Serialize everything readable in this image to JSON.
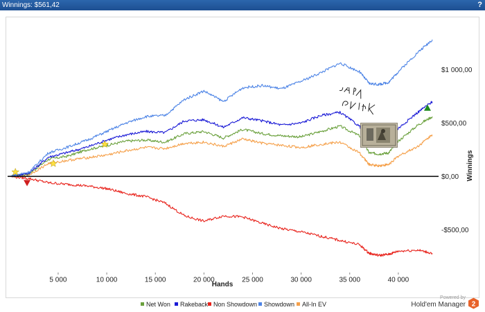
{
  "window": {
    "title": "Winnings: $561,42",
    "help_label": "?"
  },
  "chart_data": {
    "type": "line",
    "x": [
      0,
      2000,
      4000,
      6000,
      8000,
      10000,
      12000,
      14000,
      16000,
      18000,
      20000,
      22000,
      24000,
      26000,
      28000,
      30000,
      32000,
      34000,
      36000,
      37000,
      38000,
      39000,
      40000,
      42000,
      43500
    ],
    "series": [
      {
        "name": "Net Won",
        "color": "#6aa03c",
        "values": [
          0,
          25,
          160,
          190,
          250,
          290,
          330,
          340,
          320,
          400,
          420,
          360,
          440,
          400,
          380,
          370,
          420,
          470,
          380,
          220,
          210,
          220,
          330,
          480,
          560
        ]
      },
      {
        "name": "Rakeback",
        "color": "#1a1ad6",
        "values": [
          0,
          30,
          180,
          225,
          275,
          340,
          390,
          420,
          410,
          520,
          530,
          460,
          550,
          520,
          480,
          500,
          570,
          600,
          470,
          350,
          340,
          350,
          450,
          600,
          700
        ]
      },
      {
        "name": "Non Showdown",
        "color": "#e8231c",
        "values": [
          0,
          -20,
          -60,
          -75,
          -90,
          -115,
          -160,
          -190,
          -250,
          -370,
          -420,
          -370,
          -380,
          -440,
          -490,
          -520,
          -560,
          -600,
          -640,
          -720,
          -740,
          -730,
          -700,
          -690,
          -720
        ]
      },
      {
        "name": "Showdown",
        "color": "#4d84e6",
        "values": [
          0,
          40,
          220,
          275,
          340,
          420,
          500,
          560,
          570,
          720,
          800,
          700,
          830,
          850,
          820,
          890,
          970,
          1060,
          980,
          870,
          860,
          880,
          980,
          1160,
          1280
        ]
      },
      {
        "name": "All-In EV",
        "color": "#f5a04a",
        "values": [
          0,
          15,
          120,
          150,
          175,
          200,
          240,
          270,
          260,
          310,
          320,
          280,
          350,
          310,
          290,
          270,
          300,
          320,
          220,
          110,
          100,
          110,
          190,
          280,
          390
        ]
      }
    ],
    "markers": [
      {
        "kind": "star",
        "x": 600,
        "value": 40,
        "color": "#ffe040"
      },
      {
        "kind": "star",
        "x": 9800,
        "value": 300,
        "color": "#ffe040"
      },
      {
        "kind": "star",
        "x": 4500,
        "value": 120,
        "color": "#ffe040"
      },
      {
        "kind": "down-triangle",
        "x": 1800,
        "value": -60,
        "color": "#d01e1e"
      },
      {
        "kind": "up-triangle",
        "x": 43000,
        "value": 640,
        "color": "#1e8a1e"
      }
    ],
    "xlim": [
      -200,
      44000
    ],
    "ylim": [
      -900,
      1450
    ],
    "x_ticks": [
      5000,
      10000,
      15000,
      20000,
      25000,
      30000,
      35000,
      40000
    ],
    "x_tick_labels": [
      "5 000",
      "10 000",
      "15 000",
      "20 000",
      "25 000",
      "30 000",
      "35 000",
      "40 000"
    ],
    "y_ticks": [
      1000,
      500,
      0,
      -500
    ],
    "y_tick_labels": [
      "$1 000,00",
      "$500,00",
      "$0,00",
      "-$500,00"
    ],
    "xlabel": "Hands",
    "ylabel": "Winnings",
    "grid": false,
    "legend_position": "bottom"
  },
  "overlay": {
    "handwriting_text": "ВПА мирик"
  },
  "footer": {
    "powered_by": "Powered by",
    "brand": "Hold'em Manager",
    "logo_text": "2"
  }
}
